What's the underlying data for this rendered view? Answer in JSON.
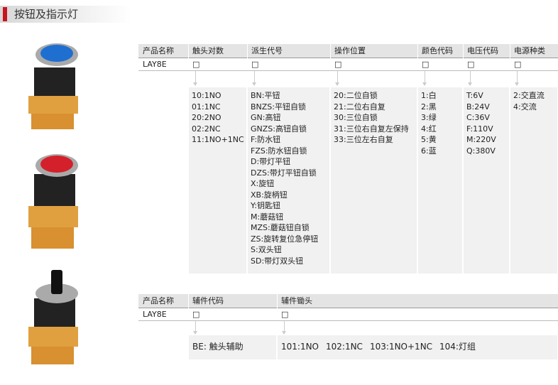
{
  "header": {
    "title": "按钮及指示灯"
  },
  "table1": {
    "headers": [
      "产品名称",
      "触头对数",
      "派生代号",
      "操作位置",
      "颜色代码",
      "电压代码",
      "电源种类"
    ],
    "row": [
      "LAY8E",
      "□",
      "□",
      "□",
      "□",
      "□",
      "□"
    ],
    "options": [
      [
        "10:1NO",
        "01:1NC",
        "20:2NO",
        "02:2NC",
        "11:1NO+1NC"
      ],
      [
        "BN:平钮",
        "BNZS:平钮自锁",
        "GN:高钮",
        "GNZS:高钮自锁",
        "F:防水钮",
        "FZS:防水钮自锁",
        "D:带灯平钮",
        "DZS:带灯平钮自锁",
        "X:旋钮",
        "XB:旋柄钮",
        "Y:钥匙钮",
        "M:蘑菇钮",
        "MZS:蘑菇钮自锁",
        "ZS:旋转复位急停钮",
        "S:双头钮",
        "SD:带灯双头钮"
      ],
      [
        "20:二位自锁",
        "21:二位右自复",
        "30:三位自锁",
        "31:三位右自复左保持",
        "33:三位左右自复"
      ],
      [
        "1:白",
        "2:黑",
        "3:绿",
        "4:红",
        "5:黄",
        "6:蓝"
      ],
      [
        "T:6V",
        "B:24V",
        "C:36V",
        "F:110V",
        "M:220V",
        "Q:380V"
      ],
      [
        "2:交直流",
        "4:交流"
      ]
    ]
  },
  "table2": {
    "headers": [
      "产品名称",
      "辅件代码",
      "辅件锄头"
    ],
    "row": [
      "LAY8E",
      "□",
      "□"
    ],
    "options": [
      [
        "BE: 触头辅助"
      ],
      [
        "101:1NO",
        "102:1NC",
        "103:1NO+1NC",
        "104:灯组"
      ]
    ]
  }
}
